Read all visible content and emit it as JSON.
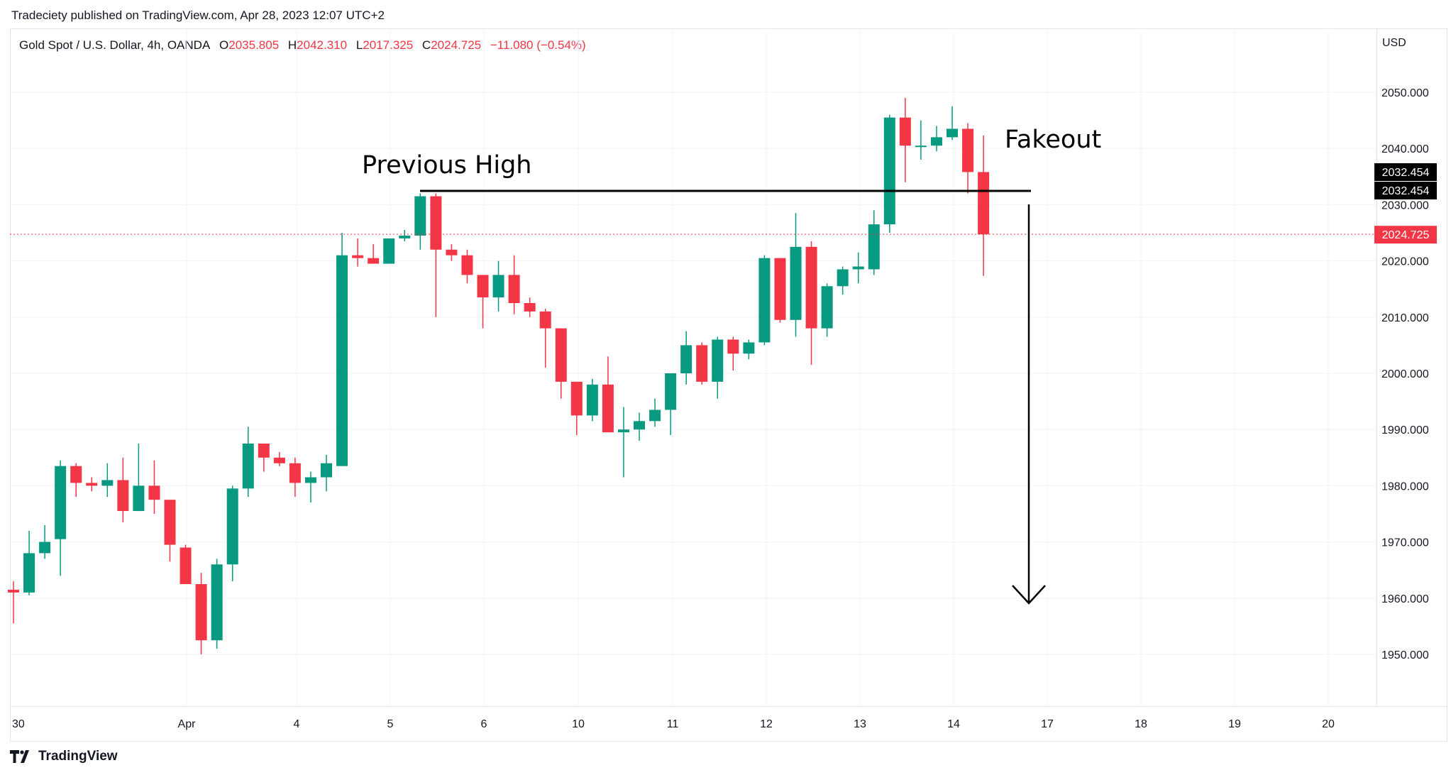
{
  "header": {
    "attribution": "Tradeciety published on TradingView.com, Apr 28, 2023 12:07 UTC+2"
  },
  "symbol": {
    "name": "Gold Spot / U.S. Dollar, 4h, OANDA",
    "open_label": "O",
    "open": "2035.805",
    "high_label": "H",
    "high": "2042.310",
    "low_label": "L",
    "low": "2017.325",
    "close_label": "C",
    "close": "2024.725",
    "change": "−11.080 (−0.54%)"
  },
  "price_axis": {
    "currency": "USD",
    "ticks": [
      "2050.000",
      "2040.000",
      "2030.000",
      "2020.000",
      "2010.000",
      "2000.000",
      "1990.000",
      "1980.000",
      "1970.000",
      "1960.000",
      "1950.000"
    ],
    "level_labels": [
      "2032.454",
      "2032.454"
    ],
    "last_price": "2024.725"
  },
  "time_axis": {
    "labels": [
      "30",
      "Apr",
      "4",
      "5",
      "6",
      "10",
      "11",
      "12",
      "13",
      "14",
      "17",
      "18",
      "19",
      "20"
    ]
  },
  "annotations": {
    "previous_high": "Previous High",
    "fakeout": "Fakeout",
    "line_level": 2032.454
  },
  "colors": {
    "up": "#089981",
    "down": "#f23645",
    "grid": "#f0f3fa",
    "text": "#131722",
    "level_box": "#000000"
  },
  "branding": {
    "label": "TradingView"
  },
  "chart_data": {
    "type": "candlestick",
    "timeframe": "4h",
    "ylim": [
      1941,
      2054
    ],
    "candles": [
      {
        "o": 1961.5,
        "h": 1963.0,
        "l": 1955.5,
        "c": 1961.0
      },
      {
        "o": 1961.0,
        "h": 1972.0,
        "l": 1960.5,
        "c": 1968.0
      },
      {
        "o": 1968.0,
        "h": 1973.0,
        "l": 1967.0,
        "c": 1970.0
      },
      {
        "o": 1970.5,
        "h": 1984.5,
        "l": 1964.0,
        "c": 1983.5
      },
      {
        "o": 1983.5,
        "h": 1984.0,
        "l": 1978.0,
        "c": 1980.5
      },
      {
        "o": 1980.5,
        "h": 1981.5,
        "l": 1979.0,
        "c": 1980.0
      },
      {
        "o": 1980.0,
        "h": 1984.0,
        "l": 1978.0,
        "c": 1981.0
      },
      {
        "o": 1981.0,
        "h": 1985.0,
        "l": 1973.5,
        "c": 1975.5
      },
      {
        "o": 1975.5,
        "h": 1987.5,
        "l": 1975.5,
        "c": 1980.0
      },
      {
        "o": 1980.0,
        "h": 1984.5,
        "l": 1975.0,
        "c": 1977.5
      },
      {
        "o": 1977.5,
        "h": 1977.5,
        "l": 1966.5,
        "c": 1969.5
      },
      {
        "o": 1969.0,
        "h": 1969.5,
        "l": 1962.5,
        "c": 1962.5
      },
      {
        "o": 1962.5,
        "h": 1964.5,
        "l": 1950.0,
        "c": 1952.5
      },
      {
        "o": 1952.5,
        "h": 1967.0,
        "l": 1951.0,
        "c": 1966.0
      },
      {
        "o": 1966.0,
        "h": 1980.0,
        "l": 1963.0,
        "c": 1979.5
      },
      {
        "o": 1979.5,
        "h": 1990.5,
        "l": 1978.0,
        "c": 1987.5
      },
      {
        "o": 1987.5,
        "h": 1987.5,
        "l": 1982.5,
        "c": 1985.0
      },
      {
        "o": 1985.0,
        "h": 1986.0,
        "l": 1983.5,
        "c": 1984.0
      },
      {
        "o": 1984.0,
        "h": 1985.0,
        "l": 1978.0,
        "c": 1980.5
      },
      {
        "o": 1980.5,
        "h": 1982.5,
        "l": 1977.0,
        "c": 1981.5
      },
      {
        "o": 1981.5,
        "h": 1985.5,
        "l": 1979.0,
        "c": 1984.0
      },
      {
        "o": 1983.5,
        "h": 2025.0,
        "l": 1983.5,
        "c": 2021.0
      },
      {
        "o": 2021.0,
        "h": 2024.0,
        "l": 2019.0,
        "c": 2020.5
      },
      {
        "o": 2020.5,
        "h": 2023.0,
        "l": 2019.5,
        "c": 2019.5
      },
      {
        "o": 2019.5,
        "h": 2024.0,
        "l": 2019.5,
        "c": 2024.0
      },
      {
        "o": 2024.0,
        "h": 2025.5,
        "l": 2023.5,
        "c": 2024.5
      },
      {
        "o": 2024.5,
        "h": 2032.0,
        "l": 2022.0,
        "c": 2031.5
      },
      {
        "o": 2031.5,
        "h": 2032.0,
        "l": 2010.0,
        "c": 2022.0
      },
      {
        "o": 2022.0,
        "h": 2023.0,
        "l": 2020.0,
        "c": 2021.0
      },
      {
        "o": 2021.0,
        "h": 2022.0,
        "l": 2016.0,
        "c": 2017.5
      },
      {
        "o": 2017.5,
        "h": 2017.5,
        "l": 2008.0,
        "c": 2013.5
      },
      {
        "o": 2013.5,
        "h": 2020.0,
        "l": 2011.0,
        "c": 2017.5
      },
      {
        "o": 2017.5,
        "h": 2021.0,
        "l": 2010.5,
        "c": 2012.5
      },
      {
        "o": 2012.5,
        "h": 2013.5,
        "l": 2010.0,
        "c": 2011.0
      },
      {
        "o": 2011.0,
        "h": 2011.5,
        "l": 2001.0,
        "c": 2008.0
      },
      {
        "o": 2008.0,
        "h": 2008.0,
        "l": 1995.5,
        "c": 1998.5
      },
      {
        "o": 1998.5,
        "h": 1998.5,
        "l": 1989.0,
        "c": 1992.5
      },
      {
        "o": 1992.5,
        "h": 1999.0,
        "l": 1991.5,
        "c": 1998.0
      },
      {
        "o": 1998.0,
        "h": 2003.0,
        "l": 1989.5,
        "c": 1989.5
      },
      {
        "o": 1989.5,
        "h": 1994.0,
        "l": 1981.5,
        "c": 1990.0
      },
      {
        "o": 1990.0,
        "h": 1993.0,
        "l": 1988.0,
        "c": 1991.5
      },
      {
        "o": 1991.5,
        "h": 1995.5,
        "l": 1990.5,
        "c": 1993.5
      },
      {
        "o": 1993.5,
        "h": 2000.0,
        "l": 1989.0,
        "c": 2000.0
      },
      {
        "o": 2000.0,
        "h": 2007.5,
        "l": 1998.0,
        "c": 2005.0
      },
      {
        "o": 2005.0,
        "h": 2005.5,
        "l": 1998.0,
        "c": 1998.5
      },
      {
        "o": 1998.5,
        "h": 2006.5,
        "l": 1995.5,
        "c": 2006.0
      },
      {
        "o": 2006.0,
        "h": 2006.5,
        "l": 2000.5,
        "c": 2003.5
      },
      {
        "o": 2003.5,
        "h": 2006.0,
        "l": 2002.5,
        "c": 2005.5
      },
      {
        "o": 2005.5,
        "h": 2021.0,
        "l": 2005.0,
        "c": 2020.5
      },
      {
        "o": 2020.5,
        "h": 2020.5,
        "l": 2009.0,
        "c": 2009.5
      },
      {
        "o": 2009.5,
        "h": 2028.5,
        "l": 2006.5,
        "c": 2022.5
      },
      {
        "o": 2022.5,
        "h": 2023.5,
        "l": 2001.5,
        "c": 2008.0
      },
      {
        "o": 2008.0,
        "h": 2016.0,
        "l": 2006.5,
        "c": 2015.5
      },
      {
        "o": 2015.5,
        "h": 2019.0,
        "l": 2014.0,
        "c": 2018.5
      },
      {
        "o": 2018.5,
        "h": 2021.5,
        "l": 2016.0,
        "c": 2019.0
      },
      {
        "o": 2018.5,
        "h": 2029.0,
        "l": 2017.5,
        "c": 2026.5
      },
      {
        "o": 2026.5,
        "h": 2046.0,
        "l": 2025.0,
        "c": 2045.5
      },
      {
        "o": 2045.5,
        "h": 2049.0,
        "l": 2034.0,
        "c": 2040.5
      },
      {
        "o": 2040.5,
        "h": 2045.0,
        "l": 2038.0,
        "c": 2040.5
      },
      {
        "o": 2040.5,
        "h": 2044.0,
        "l": 2039.5,
        "c": 2042.0
      },
      {
        "o": 2042.0,
        "h": 2047.5,
        "l": 2041.5,
        "c": 2043.5
      },
      {
        "o": 2043.5,
        "h": 2044.5,
        "l": 2032.0,
        "c": 2035.805
      },
      {
        "o": 2035.805,
        "h": 2042.31,
        "l": 2017.325,
        "c": 2024.725
      }
    ]
  }
}
